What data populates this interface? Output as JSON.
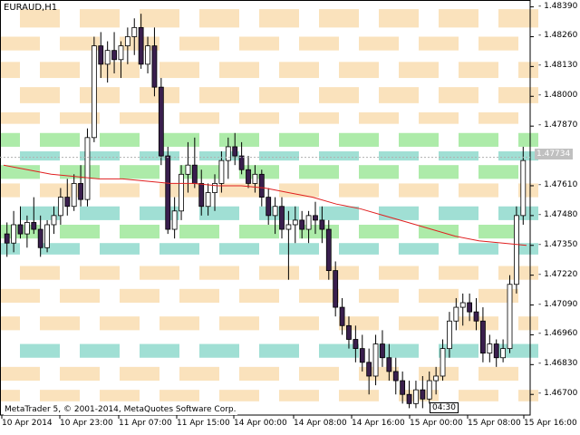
{
  "window": {
    "title": "EURAUD,H1",
    "copyright": "MetaTrader 5, © 2001-2014, MetaQuotes Software Corp.",
    "countdown": "04:30",
    "current_price": "1.47734"
  },
  "colors": {
    "background": "#ffffff",
    "bull_candle": "#ffffff",
    "bear_candle": "#3a1f4e",
    "candle_outline": "#000000",
    "moving_average": "#e02020",
    "zone_orange": "#f9ddb0",
    "zone_green": "#9fe89a",
    "zone_teal": "#8fd9cc",
    "price_tag": "#c0c0c0"
  },
  "chart_data": {
    "type": "candlestick",
    "symbol": "EURAUD",
    "timeframe": "H1",
    "price_axis_labels": [
      "1.48390",
      "1.48260",
      "1.48130",
      "1.48000",
      "1.47870",
      "1.47734",
      "1.47610",
      "1.47480",
      "1.47350",
      "1.47220",
      "1.47090",
      "1.46960",
      "1.46830",
      "1.46700"
    ],
    "time_axis_labels": [
      "10 Apr 2014",
      "10 Apr 23:00",
      "11 Apr 07:00",
      "11 Apr 15:00",
      "14 Apr 00:00",
      "14 Apr 08:00",
      "14 Apr 16:00",
      "15 Apr 00:00",
      "15 Apr 08:00",
      "15 Apr 16:00"
    ],
    "ylim": [
      1.4661,
      1.4842
    ],
    "candles": [
      [
        1.474,
        1.4745,
        1.473,
        1.4736
      ],
      [
        1.4736,
        1.475,
        1.4732,
        1.4744
      ],
      [
        1.4744,
        1.4752,
        1.4738,
        1.474
      ],
      [
        1.474,
        1.4748,
        1.4734,
        1.4745
      ],
      [
        1.4745,
        1.4756,
        1.474,
        1.4742
      ],
      [
        1.4742,
        1.4748,
        1.473,
        1.4734
      ],
      [
        1.4734,
        1.4746,
        1.4732,
        1.4744
      ],
      [
        1.4744,
        1.4752,
        1.474,
        1.4748
      ],
      [
        1.4748,
        1.476,
        1.4744,
        1.4756
      ],
      [
        1.4756,
        1.4764,
        1.4748,
        1.4752
      ],
      [
        1.4752,
        1.4766,
        1.475,
        1.4762
      ],
      [
        1.4762,
        1.477,
        1.4752,
        1.4755
      ],
      [
        1.4755,
        1.4786,
        1.4752,
        1.4782
      ],
      [
        1.4782,
        1.4826,
        1.478,
        1.4822
      ],
      [
        1.4822,
        1.4828,
        1.4808,
        1.4814
      ],
      [
        1.4814,
        1.4824,
        1.4806,
        1.482
      ],
      [
        1.482,
        1.4828,
        1.481,
        1.4816
      ],
      [
        1.4816,
        1.4824,
        1.4808,
        1.4822
      ],
      [
        1.4822,
        1.483,
        1.4814,
        1.4826
      ],
      [
        1.4826,
        1.4834,
        1.4818,
        1.483
      ],
      [
        1.483,
        1.4836,
        1.4812,
        1.4814
      ],
      [
        1.4814,
        1.4826,
        1.481,
        1.4822
      ],
      [
        1.4822,
        1.483,
        1.48,
        1.4804
      ],
      [
        1.4804,
        1.4808,
        1.477,
        1.4774
      ],
      [
        1.4774,
        1.4778,
        1.474,
        1.4742
      ],
      [
        1.4742,
        1.4756,
        1.4738,
        1.475
      ],
      [
        1.475,
        1.477,
        1.4746,
        1.4766
      ],
      [
        1.4766,
        1.478,
        1.4758,
        1.477
      ],
      [
        1.477,
        1.4782,
        1.476,
        1.4762
      ],
      [
        1.4762,
        1.4768,
        1.4748,
        1.4752
      ],
      [
        1.4752,
        1.4762,
        1.4748,
        1.4758
      ],
      [
        1.4758,
        1.4766,
        1.475,
        1.4762
      ],
      [
        1.4762,
        1.4776,
        1.4758,
        1.4772
      ],
      [
        1.4772,
        1.4782,
        1.4764,
        1.4778
      ],
      [
        1.4778,
        1.4784,
        1.477,
        1.4774
      ],
      [
        1.4774,
        1.478,
        1.4766,
        1.4768
      ],
      [
        1.4768,
        1.4774,
        1.476,
        1.4762
      ],
      [
        1.4762,
        1.477,
        1.4758,
        1.4766
      ],
      [
        1.4766,
        1.4768,
        1.4752,
        1.4756
      ],
      [
        1.4756,
        1.476,
        1.4744,
        1.4748
      ],
      [
        1.4748,
        1.4756,
        1.474,
        1.4752
      ],
      [
        1.4752,
        1.4756,
        1.4738,
        1.4742
      ],
      [
        1.4742,
        1.475,
        1.472,
        1.4744
      ],
      [
        1.4744,
        1.4752,
        1.4736,
        1.4746
      ],
      [
        1.4746,
        1.475,
        1.4738,
        1.4742
      ],
      [
        1.4742,
        1.475,
        1.4736,
        1.4748
      ],
      [
        1.4748,
        1.4754,
        1.474,
        1.4746
      ],
      [
        1.4746,
        1.4752,
        1.4736,
        1.4742
      ],
      [
        1.4742,
        1.4746,
        1.472,
        1.4724
      ],
      [
        1.4724,
        1.4728,
        1.4704,
        1.4708
      ],
      [
        1.4708,
        1.4712,
        1.4696,
        1.47
      ],
      [
        1.47,
        1.4704,
        1.469,
        1.4694
      ],
      [
        1.4694,
        1.47,
        1.4684,
        1.469
      ],
      [
        1.469,
        1.4696,
        1.468,
        1.4684
      ],
      [
        1.4684,
        1.469,
        1.467,
        1.4678
      ],
      [
        1.4678,
        1.4696,
        1.4674,
        1.4692
      ],
      [
        1.4692,
        1.4698,
        1.4682,
        1.4686
      ],
      [
        1.4686,
        1.4692,
        1.4676,
        1.468
      ],
      [
        1.468,
        1.4686,
        1.467,
        1.4676
      ],
      [
        1.4676,
        1.468,
        1.4666,
        1.467
      ],
      [
        1.467,
        1.4676,
        1.4664,
        1.4666
      ],
      [
        1.4666,
        1.4676,
        1.4664,
        1.4672
      ],
      [
        1.4672,
        1.4678,
        1.4664,
        1.4668
      ],
      [
        1.4668,
        1.468,
        1.4666,
        1.4676
      ],
      [
        1.4676,
        1.4682,
        1.467,
        1.4678
      ],
      [
        1.4678,
        1.4694,
        1.4676,
        1.469
      ],
      [
        1.469,
        1.4706,
        1.4686,
        1.4702
      ],
      [
        1.4702,
        1.4712,
        1.4698,
        1.4708
      ],
      [
        1.4708,
        1.4714,
        1.47,
        1.471
      ],
      [
        1.471,
        1.4714,
        1.4702,
        1.4706
      ],
      [
        1.4706,
        1.4712,
        1.4698,
        1.4702
      ],
      [
        1.4702,
        1.4708,
        1.4684,
        1.4688
      ],
      [
        1.4688,
        1.4696,
        1.4684,
        1.4692
      ],
      [
        1.4692,
        1.4694,
        1.4682,
        1.4686
      ],
      [
        1.4686,
        1.4694,
        1.4684,
        1.469
      ],
      [
        1.469,
        1.4722,
        1.4688,
        1.4718
      ],
      [
        1.4718,
        1.4752,
        1.4714,
        1.4748
      ],
      [
        1.4748,
        1.4778,
        1.4744,
        1.4772
      ]
    ],
    "moving_average": [
      1.477,
      1.4768,
      1.4766,
      1.4765,
      1.4764,
      1.4764,
      1.4763,
      1.4762,
      1.4762,
      1.4761,
      1.4761,
      1.476,
      1.4758,
      1.4756,
      1.4753,
      1.4751,
      1.4748,
      1.4745,
      1.4742,
      1.4739,
      1.4737,
      1.4736,
      1.4735
    ],
    "zones": [
      {
        "y1": 1.4838,
        "y2": 1.483,
        "color": "orange"
      },
      {
        "y1": 1.4826,
        "y2": 1.482,
        "color": "orange"
      },
      {
        "y1": 1.4815,
        "y2": 1.4808,
        "color": "orange"
      },
      {
        "y1": 1.4804,
        "y2": 1.4797,
        "color": "orange"
      },
      {
        "y1": 1.4793,
        "y2": 1.4788,
        "color": "orange"
      },
      {
        "y1": 1.4784,
        "y2": 1.4778,
        "color": "green"
      },
      {
        "y1": 1.4776,
        "y2": 1.4772,
        "color": "teal"
      },
      {
        "y1": 1.477,
        "y2": 1.4764,
        "color": "green"
      },
      {
        "y1": 1.4762,
        "y2": 1.4756,
        "color": "orange"
      },
      {
        "y1": 1.4752,
        "y2": 1.4746,
        "color": "teal"
      },
      {
        "y1": 1.4744,
        "y2": 1.4738,
        "color": "green"
      },
      {
        "y1": 1.4736,
        "y2": 1.4731,
        "color": "teal"
      },
      {
        "y1": 1.4726,
        "y2": 1.472,
        "color": "orange"
      },
      {
        "y1": 1.4716,
        "y2": 1.471,
        "color": "orange"
      },
      {
        "y1": 1.4704,
        "y2": 1.4698,
        "color": "orange"
      },
      {
        "y1": 1.4692,
        "y2": 1.4686,
        "color": "teal"
      },
      {
        "y1": 1.4682,
        "y2": 1.4676,
        "color": "orange"
      },
      {
        "y1": 1.4672,
        "y2": 1.4667,
        "color": "orange"
      }
    ]
  }
}
